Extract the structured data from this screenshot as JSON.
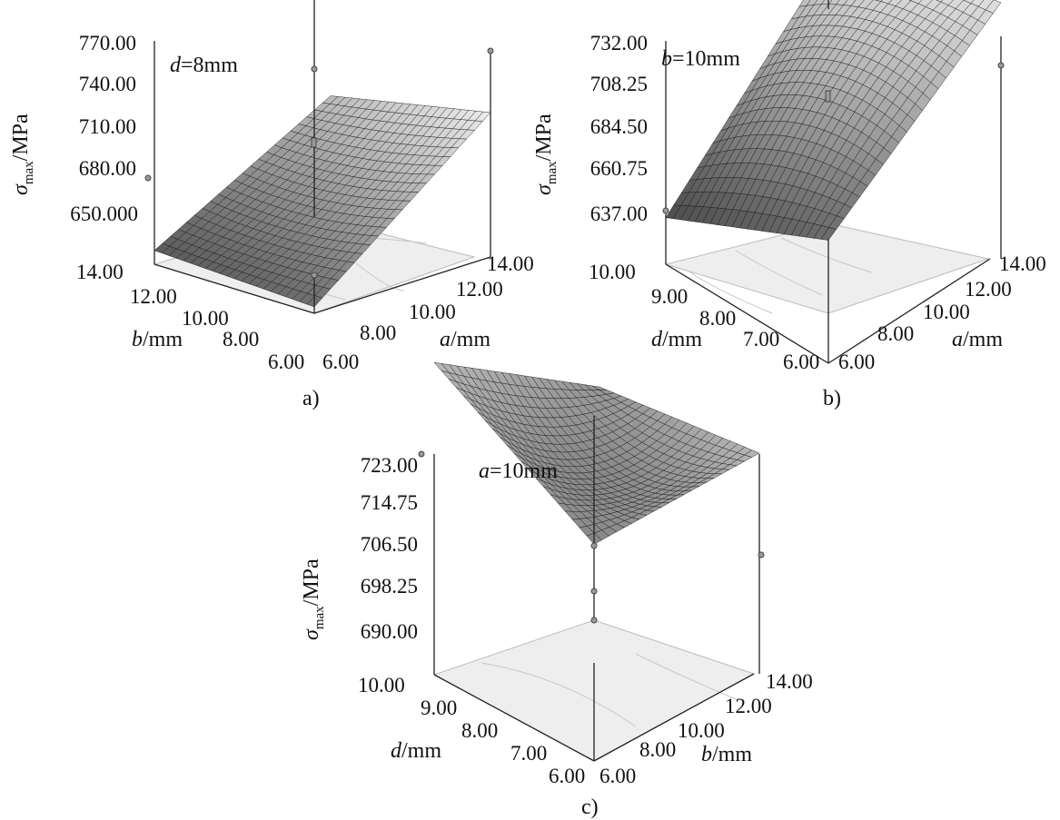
{
  "chart_data": [
    {
      "type": "surface",
      "panel_label": "a)",
      "condition": {
        "var": "d",
        "text": "=8mm"
      },
      "zlabel": {
        "symbol": "σ",
        "sub": "max",
        "unit": "/MPa"
      },
      "z_ticks": [
        "770.00",
        "740.00",
        "710.00",
        "680.00",
        "650.000"
      ],
      "zlim": [
        650,
        770
      ],
      "x": {
        "name": "a",
        "label_unit": "/mm",
        "ticks": [
          "6.00",
          "8.00",
          "10.00",
          "12.00",
          "14.00"
        ],
        "range": [
          6,
          14
        ]
      },
      "y": {
        "name": "b",
        "label_unit": "/mm",
        "ticks": [
          "6.00",
          "8.00",
          "10.00",
          "12.00",
          "14.00"
        ],
        "range": [
          6,
          14
        ]
      },
      "corner_values": {
        "x6_y6": 668,
        "x14_y6": 762,
        "x6_y14": 673,
        "x14_y14": 740
      },
      "center_value": 705
    },
    {
      "type": "surface",
      "panel_label": "b)",
      "condition": {
        "var": "b",
        "text": "=10mm"
      },
      "zlabel": {
        "symbol": "σ",
        "sub": "max",
        "unit": "/MPa"
      },
      "z_ticks": [
        "732.00",
        "708.25",
        "684.50",
        "660.75",
        "637.00"
      ],
      "zlim": [
        637,
        732
      ],
      "x": {
        "name": "a",
        "label_unit": "/mm",
        "ticks": [
          "6.00",
          "8.00",
          "10.00",
          "12.00",
          "14.00"
        ],
        "range": [
          6,
          14
        ]
      },
      "y": {
        "name": "d",
        "label_unit": "/mm",
        "ticks": [
          "6.00",
          "7.00",
          "8.00",
          "9.00",
          "10.00"
        ],
        "range": [
          6,
          10
        ]
      },
      "corner_values": {
        "x6_y6": 648,
        "x14_y6": 716,
        "x6_y10": 645,
        "x14_y10": 732
      },
      "center_value": 700
    },
    {
      "type": "surface",
      "panel_label": "c)",
      "condition": {
        "var": "a",
        "text": "=10mm"
      },
      "zlabel": {
        "symbol": "σ",
        "sub": "max",
        "unit": "/MPa"
      },
      "z_ticks": [
        "723.00",
        "714.75",
        "706.50",
        "698.25",
        "690.00"
      ],
      "zlim": [
        690,
        723
      ],
      "x": {
        "name": "b",
        "label_unit": "/mm",
        "ticks": [
          "6.00",
          "8.00",
          "10.00",
          "12.00",
          "14.00"
        ],
        "range": [
          6,
          14
        ]
      },
      "y": {
        "name": "d",
        "label_unit": "/mm",
        "ticks": [
          "6.00",
          "7.00",
          "8.00",
          "9.00",
          "10.00"
        ],
        "range": [
          6,
          10
        ]
      },
      "corner_values": {
        "x6_y6": 701,
        "x14_y6": 707,
        "x6_y10": 720,
        "x14_y10": 705
      },
      "center_value": 702
    }
  ]
}
